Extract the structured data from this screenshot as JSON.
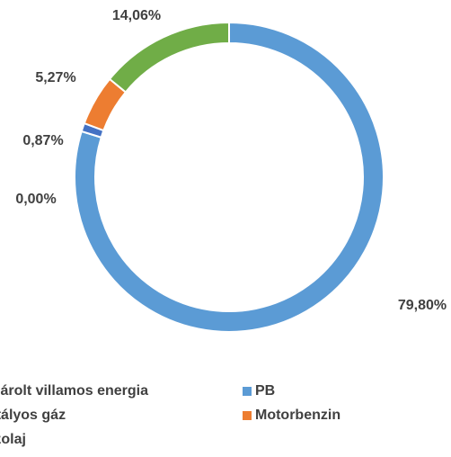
{
  "chart_data": {
    "type": "donut",
    "categories": [
      "PB",
      "Vásárolt villamos energia",
      "Tartályos gáz",
      "Motorbenzin",
      "Gázolaj"
    ],
    "values": [
      79.8,
      0.0,
      0.87,
      5.27,
      14.06
    ],
    "value_labels": [
      "79,80%",
      "0,00%",
      "0,87%",
      "5,27%",
      "14,06%"
    ],
    "colors": [
      "#5b9bd5",
      "#a5a5a5",
      "#4472c4",
      "#ed7d31",
      "#70ad47"
    ],
    "legend": "bottom"
  }
}
